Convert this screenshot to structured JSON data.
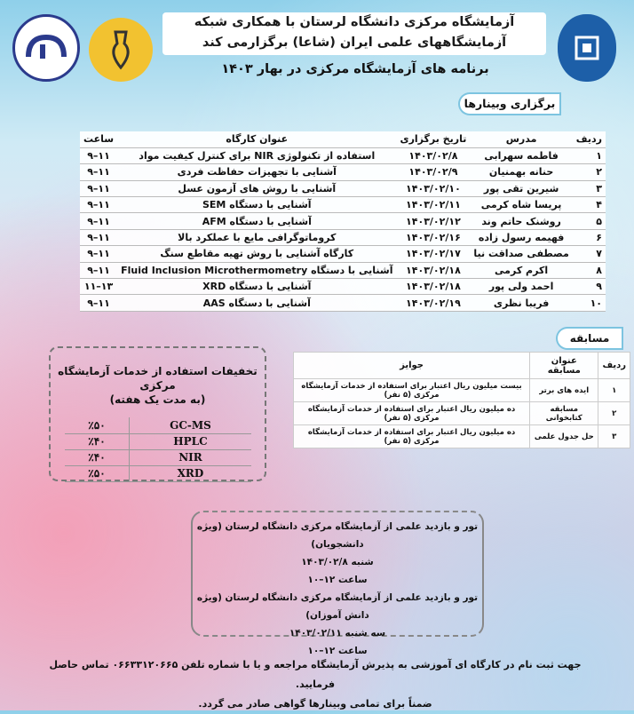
{
  "header": {
    "line1": "آزمایشگاه مرکزی دانشگاه لرستان با همکاری شبکه",
    "line2": "آزمایشگاههای علمی ایران (شاعا) برگزارمی کند",
    "subtitle": "برنامه های آزمایشگاه مرکزی در بهار ۱۴۰۳"
  },
  "logos": {
    "left": "university-lab-logo",
    "middle": "shaa-network-logo",
    "right": "lorestan-university-logo"
  },
  "webinars": {
    "label": "برگزاری وبینارها",
    "columns": [
      "ردیف",
      "مدرس",
      "تاریخ برگزاری",
      "عنوان کارگاه",
      "ساعت"
    ],
    "rows": [
      [
        "۱",
        "فاطمه سهرابی",
        "۱۴۰۳/۰۲/۸",
        "استفاده از تکنولوژی NIR برای کنترل کیفیت مواد",
        "۹–۱۱"
      ],
      [
        "۲",
        "حنانه بهمنیان",
        "۱۴۰۳/۰۲/۹",
        "آشنایی با تجهیزات حفاظت فردی",
        "۹–۱۱"
      ],
      [
        "۳",
        "شیرین تقی پور",
        "۱۴۰۳/۰۲/۱۰",
        "آشنایی با روش های آزمون عسل",
        "۹–۱۱"
      ],
      [
        "۴",
        "پریسا شاه کرمی",
        "۱۴۰۳/۰۲/۱۱",
        "آشنایی با دستگاه SEM",
        "۹–۱۱"
      ],
      [
        "۵",
        "روشنک حاتم وند",
        "۱۴۰۳/۰۲/۱۲",
        "آشنایی با دستگاه AFM",
        "۹–۱۱"
      ],
      [
        "۶",
        "فهیمه رسول زاده",
        "۱۴۰۳/۰۲/۱۶",
        "کروماتوگرافی مایع با عملکرد بالا",
        "۹–۱۱"
      ],
      [
        "۷",
        "مصطفی صداقت نیا",
        "۱۴۰۳/۰۲/۱۷",
        "کارگاه آشنایی با روش تهیه مقاطع سنگ",
        "۹–۱۱"
      ],
      [
        "۸",
        "اکرم کرمی",
        "۱۴۰۳/۰۲/۱۸",
        "آشنایی با دستگاه Fluid Inclusion Microthermometry",
        "۹–۱۱"
      ],
      [
        "۹",
        "احمد ولی پور",
        "۱۴۰۳/۰۲/۱۸",
        "آشنایی با دستگاه XRD",
        "۱۱–۱۳"
      ],
      [
        "۱۰",
        "فریبا نظری",
        "۱۴۰۳/۰۲/۱۹",
        "آشنایی با دستگاه AAS",
        "۹–۱۱"
      ]
    ]
  },
  "competition": {
    "label": "مسابقه",
    "columns": [
      "ردیف",
      "عنوان مسابقه",
      "جوایز"
    ],
    "rows": [
      [
        "۱",
        "ایده های برتر",
        "بیست میلیون ریال اعتبار برای استفاده از خدمات آزمایشگاه مرکزی (۵ نفر)"
      ],
      [
        "۲",
        "مسابقه کتابخوانی",
        "ده میلیون ریال اعتبار برای استفاده از خدمات آزمایشگاه مرکزی (۵ نفر)"
      ],
      [
        "۳",
        "حل جدول علمی",
        "ده میلیون ریال اعتبار برای استفاده از خدمات آزمایشگاه مرکزی (۵ نفر)"
      ]
    ]
  },
  "discounts": {
    "title": "تخفیفات استفاده از خدمات آزمایشگاه مرکزی",
    "subtitle": "(به مدت یک هفته)",
    "rows": [
      [
        "GC-MS",
        "٪۵۰"
      ],
      [
        "HPLC",
        "٪۴۰"
      ],
      [
        "NIR",
        "٪۴۰"
      ],
      [
        "XRD",
        "٪۵۰"
      ]
    ]
  },
  "tour": {
    "lines": [
      "تور و بازدید علمی از آزمایشگاه مرکزی دانشگاه لرستان (ویژه دانشجویان)",
      "شنبه ۱۴۰۳/۰۲/۸",
      "ساعت ۱۲–۱۰",
      "تور و بازدید علمی از آزمایشگاه مرکزی دانشگاه لرستان (ویژه دانش آموزان)",
      "سه شنبه ۱۴۰۳/۰۲/۱۱",
      "ساعت ۱۲–۱۰"
    ]
  },
  "footer": {
    "line1": "جهت ثبت نام در کارگاه ای آموزشی به پذیرش آزمایشگاه مراجعه و یا با شماره تلفن ۰۶۶۳۳۱۲۰۶۶۵ تماس حاصل فرمایید.",
    "line2": "ضمناً برای تمامی وبینارها گواهی صادر می گردد."
  }
}
